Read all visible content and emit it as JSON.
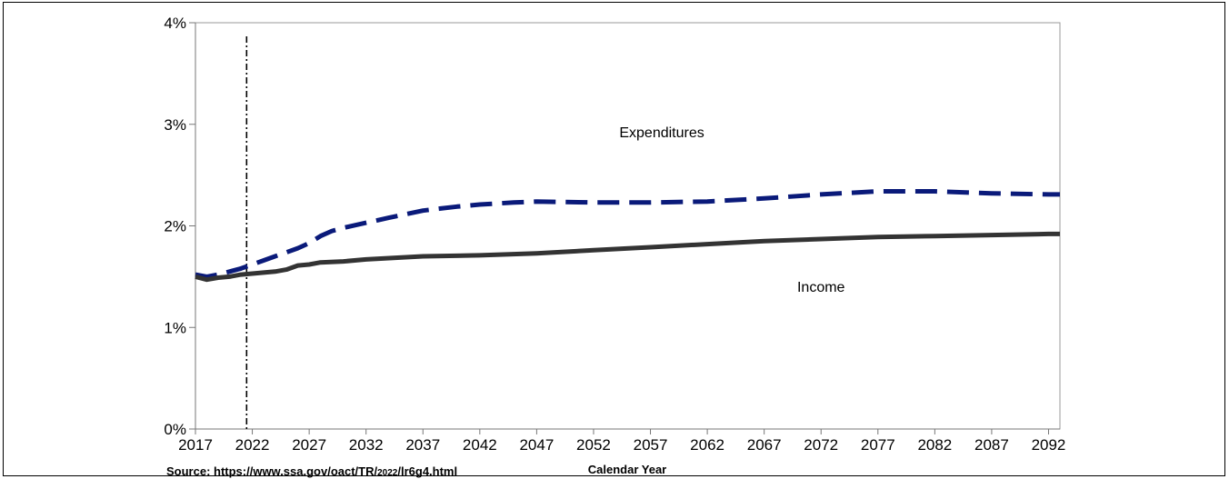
{
  "chart_data": {
    "type": "line",
    "title": "",
    "xlabel": "Calendar Year",
    "ylabel": "",
    "xlim": [
      2017,
      2093
    ],
    "ylim": [
      0,
      4
    ],
    "x_ticks": [
      "2017",
      "2022",
      "2027",
      "2032",
      "2037",
      "2042",
      "2047",
      "2052",
      "2057",
      "2062",
      "2067",
      "2072",
      "2077",
      "2082",
      "2087",
      "2092"
    ],
    "y_ticks": [
      "0%",
      "1%",
      "2%",
      "3%",
      "4%"
    ],
    "y_tick_values": [
      0,
      1,
      2,
      3,
      4
    ],
    "projection_marker_year": 2021.5,
    "grid": false,
    "legend": "none",
    "annotations": [
      {
        "text": "Expenditures",
        "series": "expenditures"
      },
      {
        "text": "Income",
        "series": "income"
      }
    ],
    "series": [
      {
        "key": "expenditures",
        "style": "dashed",
        "color": "#0a1a7a",
        "x": [
          2017,
          2018,
          2019,
          2020,
          2021,
          2022,
          2023,
          2024,
          2025,
          2026,
          2027,
          2028,
          2029,
          2030,
          2032,
          2034,
          2037,
          2040,
          2042,
          2045,
          2047,
          2052,
          2057,
          2062,
          2067,
          2072,
          2077,
          2082,
          2087,
          2092,
          2093
        ],
        "values": [
          1.52,
          1.5,
          1.52,
          1.55,
          1.58,
          1.62,
          1.66,
          1.7,
          1.74,
          1.78,
          1.83,
          1.9,
          1.95,
          1.98,
          2.03,
          2.08,
          2.15,
          2.19,
          2.21,
          2.23,
          2.24,
          2.23,
          2.23,
          2.24,
          2.27,
          2.31,
          2.34,
          2.34,
          2.32,
          2.31,
          2.31
        ]
      },
      {
        "key": "income",
        "style": "solid",
        "color": "#333333",
        "x": [
          2017,
          2018,
          2019,
          2020,
          2021,
          2022,
          2023,
          2024,
          2025,
          2026,
          2027,
          2028,
          2030,
          2032,
          2037,
          2042,
          2047,
          2052,
          2057,
          2062,
          2067,
          2072,
          2077,
          2082,
          2087,
          2092,
          2093
        ],
        "values": [
          1.5,
          1.47,
          1.49,
          1.5,
          1.52,
          1.53,
          1.54,
          1.55,
          1.57,
          1.61,
          1.62,
          1.64,
          1.65,
          1.67,
          1.7,
          1.71,
          1.73,
          1.76,
          1.79,
          1.82,
          1.85,
          1.87,
          1.89,
          1.9,
          1.91,
          1.92,
          1.92
        ]
      }
    ]
  },
  "source_note": {
    "prefix": "Source:  https://www.ssa.gov/oact/TR/",
    "year": "2022",
    "suffix": "/lr6g4.html"
  }
}
